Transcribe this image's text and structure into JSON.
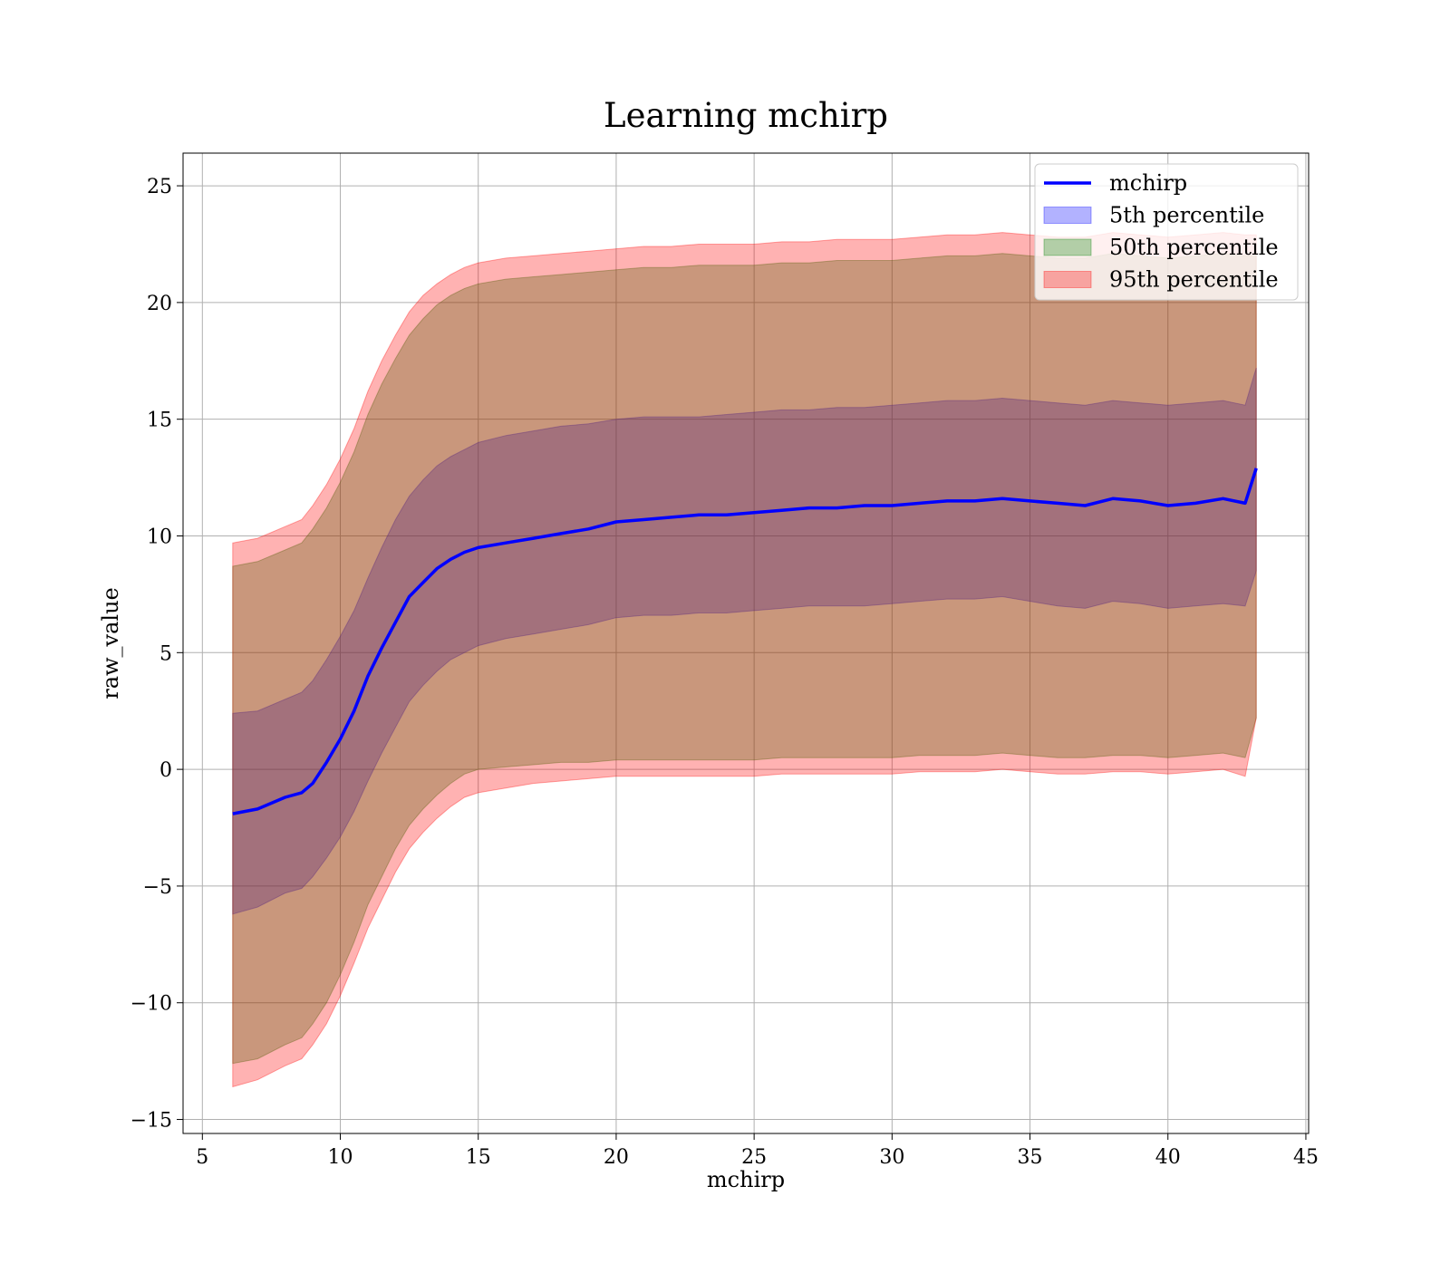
{
  "chart_data": {
    "type": "area",
    "title": "Learning mchirp",
    "xlabel": "mchirp",
    "ylabel": "raw_value",
    "xlim": [
      4.3,
      45.1
    ],
    "ylim": [
      -15.6,
      26.4
    ],
    "xticks": [
      5,
      10,
      15,
      20,
      25,
      30,
      35,
      40,
      45
    ],
    "yticks": [
      -15,
      -10,
      -5,
      0,
      5,
      10,
      15,
      20,
      25
    ],
    "xtick_labels": [
      "5",
      "10",
      "15",
      "20",
      "25",
      "30",
      "35",
      "40",
      "45"
    ],
    "ytick_labels": [
      "−15",
      "−10",
      "−5",
      "0",
      "5",
      "10",
      "15",
      "20",
      "25"
    ],
    "grid": true,
    "legend_position": "top-right",
    "x": [
      6.1,
      7,
      8,
      8.6,
      9,
      9.5,
      10,
      10.5,
      11,
      11.5,
      12,
      12.5,
      13,
      13.5,
      14,
      14.5,
      15,
      16,
      17,
      18,
      19,
      20,
      21,
      22,
      23,
      24,
      25,
      26,
      27,
      28,
      29,
      30,
      31,
      32,
      33,
      34,
      35,
      36,
      37,
      38,
      39,
      40,
      41,
      42,
      42.8,
      43.2
    ],
    "series": [
      {
        "name": "mchirp",
        "kind": "line",
        "color": "#0000ff",
        "values": [
          -1.9,
          -1.7,
          -1.2,
          -1.0,
          -0.6,
          0.3,
          1.3,
          2.5,
          4.0,
          5.2,
          6.3,
          7.4,
          8.0,
          8.6,
          9.0,
          9.3,
          9.5,
          9.7,
          9.9,
          10.1,
          10.3,
          10.6,
          10.7,
          10.8,
          10.9,
          10.9,
          11.0,
          11.1,
          11.2,
          11.2,
          11.3,
          11.3,
          11.4,
          11.5,
          11.5,
          11.6,
          11.5,
          11.4,
          11.3,
          11.6,
          11.5,
          11.3,
          11.4,
          11.6,
          11.4,
          12.9
        ]
      },
      {
        "name": "5th percentile",
        "kind": "band",
        "color": "#0000ff",
        "lower": [
          -6.2,
          -5.9,
          -5.3,
          -5.1,
          -4.6,
          -3.8,
          -2.9,
          -1.8,
          -0.5,
          0.7,
          1.8,
          2.9,
          3.6,
          4.2,
          4.7,
          5.0,
          5.3,
          5.6,
          5.8,
          6.0,
          6.2,
          6.5,
          6.6,
          6.6,
          6.7,
          6.7,
          6.8,
          6.9,
          7.0,
          7.0,
          7.0,
          7.1,
          7.2,
          7.3,
          7.3,
          7.4,
          7.2,
          7.0,
          6.9,
          7.2,
          7.1,
          6.9,
          7.0,
          7.1,
          7.0,
          8.5
        ],
        "upper": [
          2.4,
          2.5,
          3.0,
          3.3,
          3.8,
          4.7,
          5.7,
          6.8,
          8.2,
          9.5,
          10.7,
          11.7,
          12.4,
          13.0,
          13.4,
          13.7,
          14.0,
          14.3,
          14.5,
          14.7,
          14.8,
          15.0,
          15.1,
          15.1,
          15.1,
          15.2,
          15.3,
          15.4,
          15.4,
          15.5,
          15.5,
          15.6,
          15.7,
          15.8,
          15.8,
          15.9,
          15.8,
          15.7,
          15.6,
          15.8,
          15.7,
          15.6,
          15.7,
          15.8,
          15.6,
          17.2
        ]
      },
      {
        "name": "50th percentile",
        "kind": "band",
        "color": "#008000",
        "lower": [
          -12.6,
          -12.4,
          -11.8,
          -11.5,
          -10.9,
          -10.0,
          -8.8,
          -7.4,
          -5.8,
          -4.6,
          -3.4,
          -2.4,
          -1.7,
          -1.1,
          -0.6,
          -0.2,
          0.0,
          0.1,
          0.2,
          0.3,
          0.3,
          0.4,
          0.4,
          0.4,
          0.4,
          0.4,
          0.4,
          0.5,
          0.5,
          0.5,
          0.5,
          0.5,
          0.6,
          0.6,
          0.6,
          0.7,
          0.6,
          0.5,
          0.5,
          0.6,
          0.6,
          0.5,
          0.6,
          0.7,
          0.5,
          2.2
        ],
        "upper": [
          8.7,
          8.9,
          9.4,
          9.7,
          10.3,
          11.2,
          12.3,
          13.6,
          15.2,
          16.5,
          17.6,
          18.6,
          19.3,
          19.9,
          20.3,
          20.6,
          20.8,
          21.0,
          21.1,
          21.2,
          21.3,
          21.4,
          21.5,
          21.5,
          21.6,
          21.6,
          21.6,
          21.7,
          21.7,
          21.8,
          21.8,
          21.8,
          21.9,
          22.0,
          22.0,
          22.1,
          22.0,
          21.9,
          21.9,
          22.1,
          22.0,
          21.9,
          22.0,
          22.1,
          22.0,
          22.0
        ]
      },
      {
        "name": "95th percentile",
        "kind": "band",
        "color": "#ff0000",
        "lower": [
          -13.6,
          -13.3,
          -12.7,
          -12.4,
          -11.8,
          -10.9,
          -9.7,
          -8.3,
          -6.8,
          -5.6,
          -4.4,
          -3.4,
          -2.7,
          -2.1,
          -1.6,
          -1.2,
          -1.0,
          -0.8,
          -0.6,
          -0.5,
          -0.4,
          -0.3,
          -0.3,
          -0.3,
          -0.3,
          -0.3,
          -0.3,
          -0.2,
          -0.2,
          -0.2,
          -0.2,
          -0.2,
          -0.1,
          -0.1,
          -0.1,
          -0.0,
          -0.1,
          -0.2,
          -0.2,
          -0.1,
          -0.1,
          -0.2,
          -0.1,
          0.0,
          -0.3,
          2.2
        ],
        "upper": [
          9.7,
          9.9,
          10.4,
          10.7,
          11.3,
          12.2,
          13.3,
          14.6,
          16.2,
          17.5,
          18.6,
          19.6,
          20.3,
          20.8,
          21.2,
          21.5,
          21.7,
          21.9,
          22.0,
          22.1,
          22.2,
          22.3,
          22.4,
          22.4,
          22.5,
          22.5,
          22.5,
          22.6,
          22.6,
          22.7,
          22.7,
          22.7,
          22.8,
          22.9,
          22.9,
          23.0,
          22.9,
          22.8,
          22.8,
          23.0,
          22.9,
          22.8,
          22.9,
          23.0,
          22.9,
          22.9
        ]
      }
    ]
  }
}
